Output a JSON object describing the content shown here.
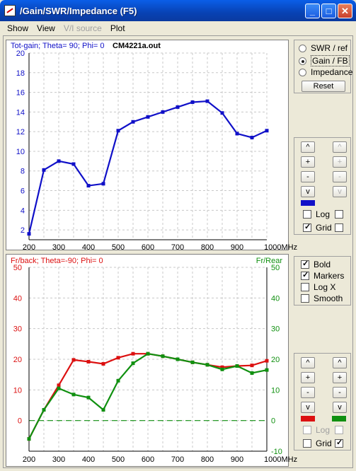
{
  "window": {
    "title": "/Gain/SWR/Impedance (F5)"
  },
  "menu": {
    "show": "Show",
    "view": "View",
    "vi_source": "V/I source",
    "plot": "Plot"
  },
  "top_plot": {
    "title": "Tot-gain; Theta= 90; Phi= 0",
    "file": "CM4221a.out",
    "x_unit_label": "1000MHz",
    "y_ticks": [
      "2",
      "4",
      "6",
      "8",
      "10",
      "12",
      "14",
      "16",
      "18",
      "20"
    ],
    "x_ticks": [
      "200",
      "300",
      "400",
      "500",
      "600",
      "700",
      "800",
      "900"
    ],
    "color": "#1010c8"
  },
  "bottom_plot": {
    "left_title": "Fr/back; Theta=-90; Phi= 0",
    "right_title": "Fr/Rear",
    "x_unit_label": "1000MHz",
    "y_left_ticks": [
      "50",
      "40",
      "30",
      "20",
      "10",
      "0"
    ],
    "y_right_ticks": [
      "50",
      "40",
      "30",
      "20",
      "10",
      "0",
      "-10"
    ],
    "x_ticks": [
      "200",
      "300",
      "400",
      "500",
      "600",
      "700",
      "800",
      "900"
    ],
    "color_left": "#dc1010",
    "color_right": "#109010"
  },
  "chart_data": [
    {
      "type": "line",
      "title": "Tot-gain; Theta= 90; Phi= 0",
      "xlabel": "MHz",
      "xlim": [
        200,
        1000
      ],
      "ylim": [
        1,
        20
      ],
      "x": [
        200,
        250,
        300,
        350,
        400,
        450,
        500,
        550,
        600,
        650,
        700,
        750,
        800,
        850,
        900,
        950,
        1000
      ],
      "series": [
        {
          "values": [
            1.6,
            8.1,
            9.0,
            8.7,
            6.5,
            6.7,
            12.1,
            13.0,
            13.5,
            14.0,
            14.5,
            15.0,
            15.1,
            13.9,
            11.8,
            11.4,
            12.1
          ]
        }
      ],
      "grid": true
    },
    {
      "type": "line",
      "title": "Fr/back; Theta=-90; Phi= 0",
      "xlabel": "MHz",
      "xlim": [
        200,
        1000
      ],
      "ylim": [
        -10,
        50
      ],
      "x": [
        200,
        250,
        300,
        350,
        400,
        450,
        500,
        550,
        600,
        650,
        700,
        750,
        800,
        850,
        900,
        950,
        1000
      ],
      "series": [
        {
          "name": "Fr/back",
          "values": [
            -6,
            3.5,
            11.5,
            19.8,
            19.2,
            18.5,
            20.5,
            21.8,
            21.8,
            21,
            20,
            19,
            18.2,
            17.4,
            17.8,
            18,
            19.5
          ]
        },
        {
          "name": "Fr/Rear",
          "values": [
            -6,
            3.5,
            10.5,
            8.5,
            7.5,
            3.5,
            13,
            18.7,
            21.8,
            21,
            20,
            19,
            18.2,
            16.7,
            17.8,
            15.5,
            16.5
          ]
        }
      ],
      "zero_line": true,
      "grid": true
    }
  ],
  "right_panel": {
    "swr": "SWR / ref",
    "gain": "Gain / FB",
    "impedance": "Impedance",
    "reset": "Reset",
    "up": "^",
    "plus": "+",
    "minus": "-",
    "down": "v",
    "log": "Log",
    "grid": "Grid",
    "bold": "Bold",
    "markers": "Markers",
    "logx": "Log X",
    "smooth": "Smooth",
    "color_top": "#1010c8",
    "color_red": "#dc1010",
    "color_green": "#109010"
  }
}
